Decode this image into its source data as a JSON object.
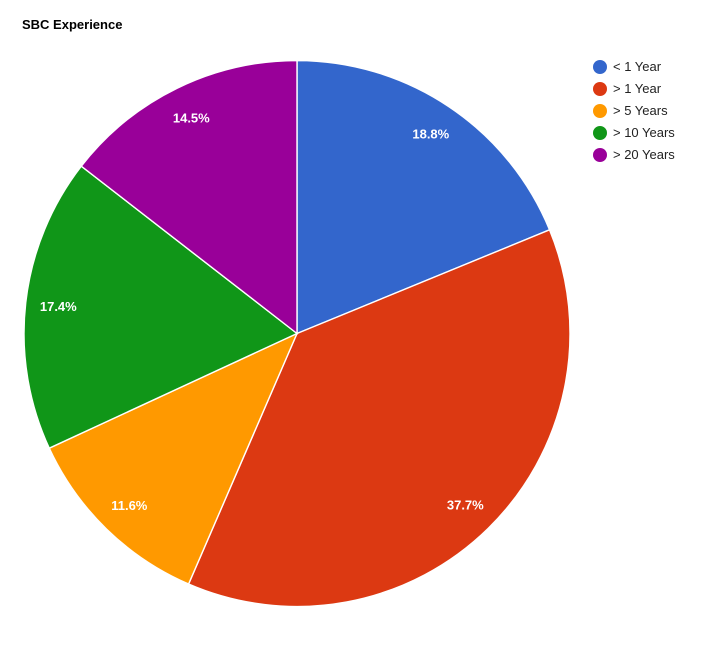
{
  "chart_data": {
    "type": "pie",
    "title": "SBC Experience",
    "title_color": "#000000",
    "background_color": "#ffffff",
    "legend_position": "right",
    "legend_text_color": "#222222",
    "slice_label_color": "#ffffff",
    "slice_border_color": "#ffffff",
    "start_angle_deg": 0,
    "direction": "clockwise",
    "categories": [
      "< 1 Year",
      "> 1 Year",
      "> 5 Years",
      "> 10 Years",
      "> 20 Years"
    ],
    "values": [
      18.8,
      37.7,
      11.6,
      17.4,
      14.5
    ],
    "slices": [
      {
        "label": "< 1 Year",
        "value": 18.8,
        "display": "18.8%",
        "color": "#3366CC"
      },
      {
        "label": "> 1 Year",
        "value": 37.7,
        "display": "37.7%",
        "color": "#DC3912"
      },
      {
        "label": "> 5 Years",
        "value": 11.6,
        "display": "11.6%",
        "color": "#FF9900"
      },
      {
        "label": "> 10 Years",
        "value": 17.4,
        "display": "17.4%",
        "color": "#109618"
      },
      {
        "label": "> 20 Years",
        "value": 14.5,
        "display": "14.5%",
        "color": "#990099"
      }
    ]
  }
}
